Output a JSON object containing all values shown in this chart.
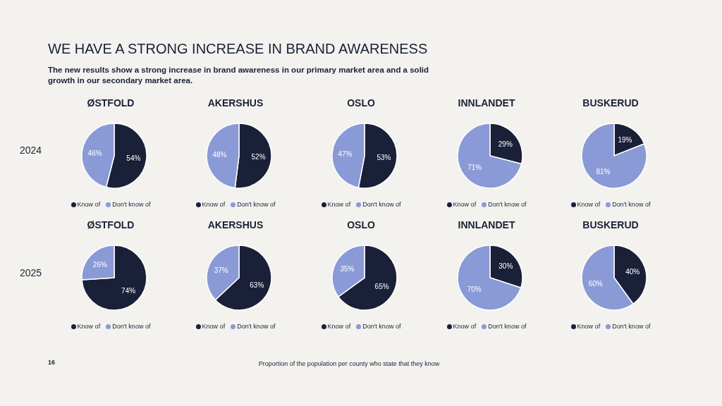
{
  "chart_data": [
    {
      "type": "pie",
      "title": "ØSTFOLD",
      "categories": [
        "Know of",
        "Don't know of"
      ],
      "values": [
        54,
        46
      ],
      "value_labels": [
        "54%",
        "46%"
      ],
      "colors": [
        "#1a2038",
        "#8a9ad6"
      ],
      "legend": "bottom",
      "annotations": [
        "WE HAVE A STRONG INCREASE IN BRAND AWARENESS",
        "The new results show a strong increase in brand awareness in our primary market area and a solid growth in our secondary market area.",
        "2024"
      ]
    },
    {
      "type": "pie",
      "title": "AKERSHUS",
      "categories": [
        "Know of",
        "Don't know of"
      ],
      "values": [
        52,
        48
      ],
      "value_labels": [
        "52%",
        "48%"
      ],
      "colors": [
        "#1a2038",
        "#8a9ad6"
      ],
      "legend": "bottom"
    },
    {
      "type": "pie",
      "title": "OSLO",
      "categories": [
        "Know of",
        "Don't know of"
      ],
      "values": [
        53,
        47
      ],
      "value_labels": [
        "53%",
        "47%"
      ],
      "colors": [
        "#1a2038",
        "#8a9ad6"
      ],
      "legend": "bottom"
    },
    {
      "type": "pie",
      "title": "INNLANDET",
      "categories": [
        "Know of",
        "Don't know of"
      ],
      "values": [
        29,
        71
      ],
      "value_labels": [
        "29%",
        "71%"
      ],
      "colors": [
        "#1a2038",
        "#8a9ad6"
      ],
      "legend": "bottom"
    },
    {
      "type": "pie",
      "title": "BUSKERUD",
      "categories": [
        "Know of",
        "Don't know of"
      ],
      "values": [
        19,
        81
      ],
      "value_labels": [
        "19%",
        "81%"
      ],
      "colors": [
        "#1a2038",
        "#8a9ad6"
      ],
      "legend": "bottom"
    },
    {
      "type": "pie",
      "title": "ØSTFOLD",
      "categories": [
        "Know of",
        "Don't know of"
      ],
      "values": [
        74,
        26
      ],
      "value_labels": [
        "74%",
        "26%"
      ],
      "colors": [
        "#1a2038",
        "#8a9ad6"
      ],
      "legend": "bottom",
      "annotations": [
        "2025"
      ]
    },
    {
      "type": "pie",
      "title": "AKERSHUS",
      "categories": [
        "Know of",
        "Don't know of"
      ],
      "values": [
        63,
        37
      ],
      "value_labels": [
        "63%",
        "37%"
      ],
      "colors": [
        "#1a2038",
        "#8a9ad6"
      ],
      "legend": "bottom"
    },
    {
      "type": "pie",
      "title": "OSLO",
      "categories": [
        "Know of",
        "Don't know of"
      ],
      "values": [
        65,
        35
      ],
      "value_labels": [
        "65%",
        "35%"
      ],
      "colors": [
        "#1a2038",
        "#8a9ad6"
      ],
      "legend": "bottom"
    },
    {
      "type": "pie",
      "title": "INNLANDET",
      "categories": [
        "Know of",
        "Don't know of"
      ],
      "values": [
        30,
        70
      ],
      "value_labels": [
        "30%",
        "70%"
      ],
      "colors": [
        "#1a2038",
        "#8a9ad6"
      ],
      "legend": "bottom"
    },
    {
      "type": "pie",
      "title": "BUSKERUD",
      "categories": [
        "Know of",
        "Don't know of"
      ],
      "values": [
        40,
        60
      ],
      "value_labels": [
        "40%",
        "60%"
      ],
      "colors": [
        "#1a2038",
        "#8a9ad6"
      ],
      "legend": "bottom",
      "annotations": [
        "16",
        "Proportion of the population per county who state that they know"
      ]
    }
  ]
}
